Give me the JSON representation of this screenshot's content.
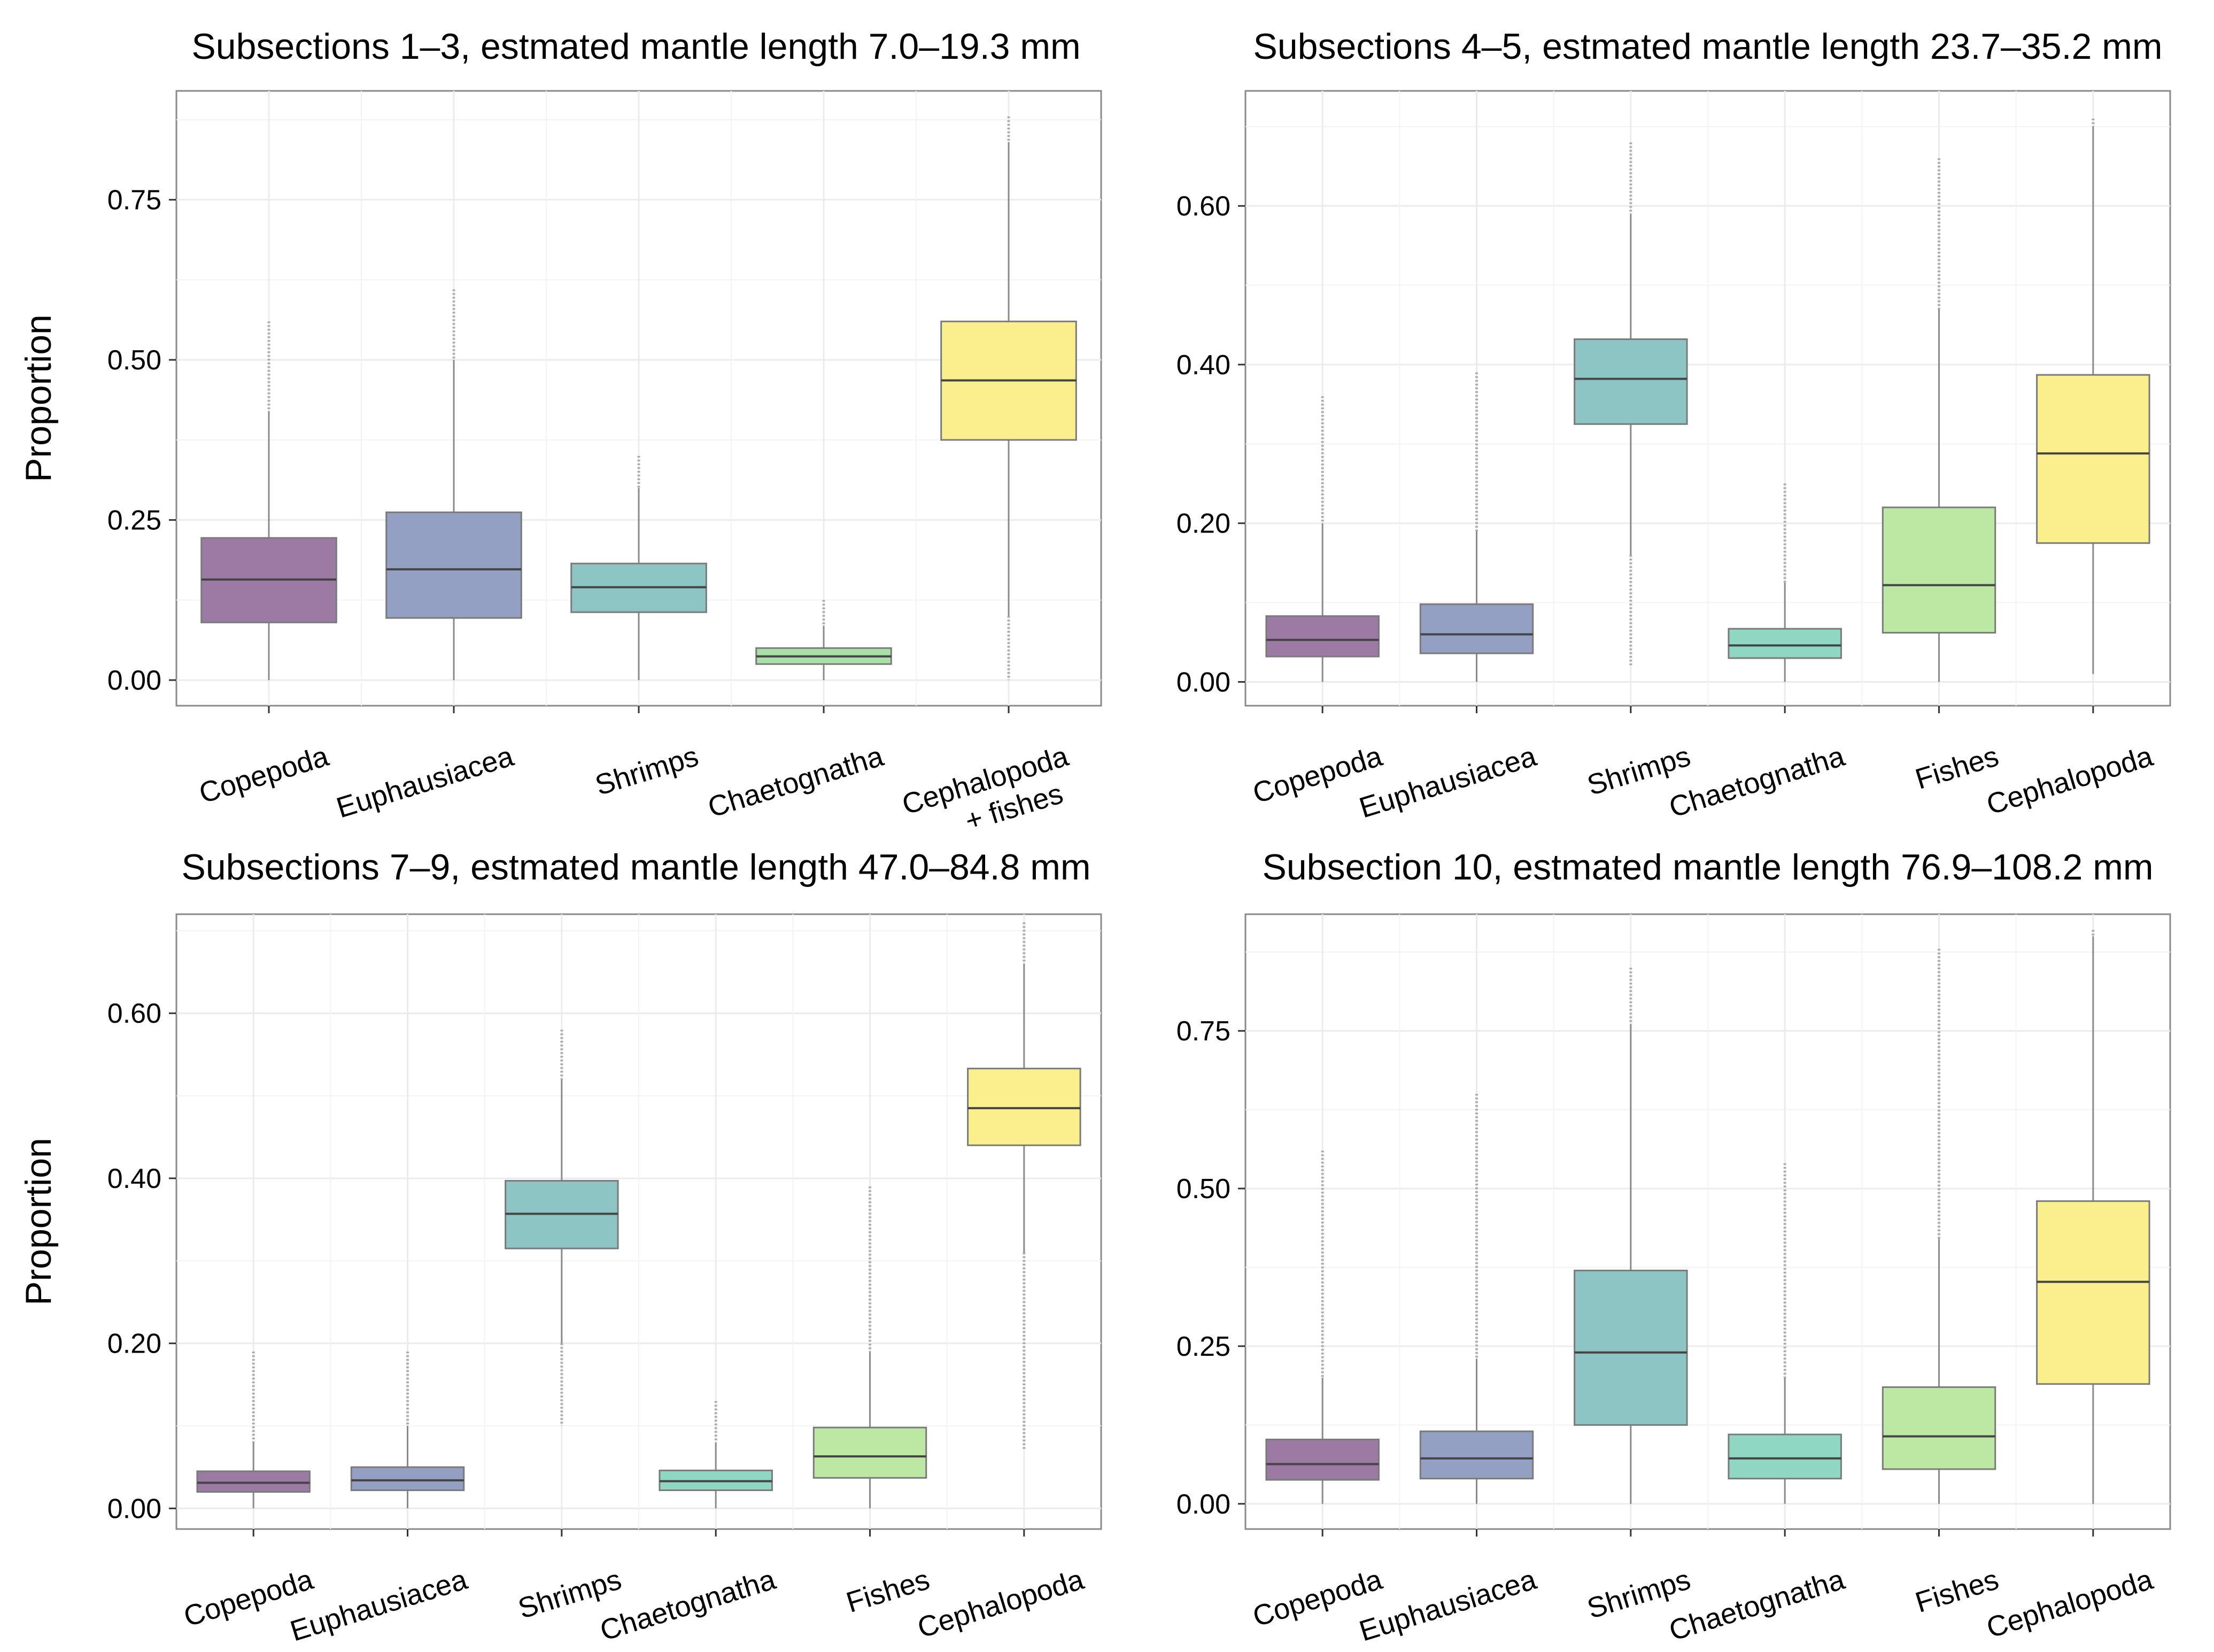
{
  "chart_data": [
    {
      "type": "box",
      "title": "Subsections 1–3, estmated mantle length 7.0–19.3 mm",
      "ylabel": "Proportion",
      "xlabel": "",
      "ylim": [
        -0.04,
        0.92
      ],
      "yticks": [
        0.0,
        0.25,
        0.5,
        0.75
      ],
      "ytick_labels": [
        "0.00",
        "0.25",
        "0.50",
        "0.75"
      ],
      "grid": true,
      "categories": [
        "Copepoda",
        "Euphausiacea",
        "Shrimps",
        "Chaetognatha",
        "Cephalopoda + fishes"
      ],
      "category_lines": [
        [
          "Copepoda"
        ],
        [
          "Euphausiacea"
        ],
        [
          "Shrimps"
        ],
        [
          "Chaetognatha"
        ],
        [
          "Cephalopoda",
          "+ fishes"
        ]
      ],
      "boxes": [
        {
          "min": 0.0,
          "q1": 0.09,
          "median": 0.157,
          "q3": 0.222,
          "max": 0.42,
          "outlier_top": 0.56,
          "outlier_bottom": null,
          "color": "#9b7aa3"
        },
        {
          "min": 0.0,
          "q1": 0.097,
          "median": 0.173,
          "q3": 0.262,
          "max": 0.5,
          "outlier_top": 0.61,
          "outlier_bottom": null,
          "color": "#94a0c3"
        },
        {
          "min": 0.0,
          "q1": 0.106,
          "median": 0.145,
          "q3": 0.182,
          "max": 0.3,
          "outlier_top": 0.35,
          "outlier_bottom": null,
          "color": "#8cc5c4"
        },
        {
          "min": 0.0,
          "q1": 0.025,
          "median": 0.037,
          "q3": 0.05,
          "max": 0.085,
          "outlier_top": 0.125,
          "outlier_bottom": null,
          "color": "#a9dfa8"
        },
        {
          "min": 0.1,
          "q1": 0.375,
          "median": 0.468,
          "q3": 0.56,
          "max": 0.84,
          "outlier_top": 0.88,
          "outlier_bottom": 0.0,
          "color": "#f9ef8d"
        }
      ]
    },
    {
      "type": "box",
      "title": "Subsections 4–5, estmated mantle length 23.7–35.2 mm",
      "ylabel": "",
      "xlabel": "",
      "ylim": [
        -0.03,
        0.745
      ],
      "yticks": [
        0.0,
        0.2,
        0.4,
        0.6
      ],
      "ytick_labels": [
        "0.00",
        "0.20",
        "0.40",
        "0.60"
      ],
      "grid": true,
      "categories": [
        "Copepoda",
        "Euphausiacea",
        "Shrimps",
        "Chaetognatha",
        "Fishes",
        "Cephalopoda"
      ],
      "category_lines": [
        [
          "Copepoda"
        ],
        [
          "Euphausiacea"
        ],
        [
          "Shrimps"
        ],
        [
          "Chaetognatha"
        ],
        [
          "Fishes"
        ],
        [
          "Cephalopoda"
        ]
      ],
      "boxes": [
        {
          "min": 0.0,
          "q1": 0.032,
          "median": 0.053,
          "q3": 0.083,
          "max": 0.2,
          "outlier_top": 0.36,
          "outlier_bottom": null,
          "color": "#9b7aa3"
        },
        {
          "min": 0.0,
          "q1": 0.036,
          "median": 0.06,
          "q3": 0.098,
          "max": 0.19,
          "outlier_top": 0.39,
          "outlier_bottom": null,
          "color": "#94a0c3"
        },
        {
          "min": 0.16,
          "q1": 0.325,
          "median": 0.382,
          "q3": 0.432,
          "max": 0.59,
          "outlier_top": 0.68,
          "outlier_bottom": 0.02,
          "color": "#8cc5c4"
        },
        {
          "min": 0.0,
          "q1": 0.03,
          "median": 0.046,
          "q3": 0.067,
          "max": 0.125,
          "outlier_top": 0.25,
          "outlier_bottom": null,
          "color": "#8fd6c3"
        },
        {
          "min": 0.0,
          "q1": 0.062,
          "median": 0.122,
          "q3": 0.22,
          "max": 0.47,
          "outlier_top": 0.66,
          "outlier_bottom": null,
          "color": "#bce8a3"
        },
        {
          "min": 0.01,
          "q1": 0.175,
          "median": 0.288,
          "q3": 0.387,
          "max": 0.7,
          "outlier_top": 0.71,
          "outlier_bottom": null,
          "color": "#f9ef8d"
        }
      ]
    },
    {
      "type": "box",
      "title": "Subsections 7–9, estmated mantle length 47.0–84.8 mm",
      "ylabel": "Proportion",
      "xlabel": "",
      "ylim": [
        -0.025,
        0.72
      ],
      "yticks": [
        0.0,
        0.2,
        0.4,
        0.6
      ],
      "ytick_labels": [
        "0.00",
        "0.20",
        "0.40",
        "0.60"
      ],
      "grid": true,
      "categories": [
        "Copepoda",
        "Euphausiacea",
        "Shrimps",
        "Chaetognatha",
        "Fishes",
        "Cephalopoda"
      ],
      "category_lines": [
        [
          "Copepoda"
        ],
        [
          "Euphausiacea"
        ],
        [
          "Shrimps"
        ],
        [
          "Chaetognatha"
        ],
        [
          "Fishes"
        ],
        [
          "Cephalopoda"
        ]
      ],
      "boxes": [
        {
          "min": 0.0,
          "q1": 0.02,
          "median": 0.031,
          "q3": 0.045,
          "max": 0.08,
          "outlier_top": 0.19,
          "outlier_bottom": null,
          "color": "#9b7aa3"
        },
        {
          "min": 0.0,
          "q1": 0.022,
          "median": 0.034,
          "q3": 0.05,
          "max": 0.1,
          "outlier_top": 0.19,
          "outlier_bottom": null,
          "color": "#94a0c3"
        },
        {
          "min": 0.2,
          "q1": 0.315,
          "median": 0.357,
          "q3": 0.397,
          "max": 0.52,
          "outlier_top": 0.58,
          "outlier_bottom": 0.1,
          "color": "#8cc5c4"
        },
        {
          "min": 0.0,
          "q1": 0.022,
          "median": 0.033,
          "q3": 0.046,
          "max": 0.08,
          "outlier_top": 0.13,
          "outlier_bottom": null,
          "color": "#8fd6c3"
        },
        {
          "min": 0.0,
          "q1": 0.037,
          "median": 0.063,
          "q3": 0.098,
          "max": 0.19,
          "outlier_top": 0.39,
          "outlier_bottom": null,
          "color": "#bce8a3"
        },
        {
          "min": 0.31,
          "q1": 0.44,
          "median": 0.485,
          "q3": 0.533,
          "max": 0.66,
          "outlier_top": 0.71,
          "outlier_bottom": 0.07,
          "color": "#f9ef8d"
        }
      ]
    },
    {
      "type": "box",
      "title": "Subsection 10, estmated mantle length 76.9–108.2 mm",
      "ylabel": "",
      "xlabel": "",
      "ylim": [
        -0.04,
        0.935
      ],
      "yticks": [
        0.0,
        0.25,
        0.5,
        0.75
      ],
      "ytick_labels": [
        "0.00",
        "0.25",
        "0.50",
        "0.75"
      ],
      "grid": true,
      "categories": [
        "Copepoda",
        "Euphausiacea",
        "Shrimps",
        "Chaetognatha",
        "Fishes",
        "Cephalopoda"
      ],
      "category_lines": [
        [
          "Copepoda"
        ],
        [
          "Euphausiacea"
        ],
        [
          "Shrimps"
        ],
        [
          "Chaetognatha"
        ],
        [
          "Fishes"
        ],
        [
          "Cephalopoda"
        ]
      ],
      "boxes": [
        {
          "min": 0.0,
          "q1": 0.038,
          "median": 0.063,
          "q3": 0.102,
          "max": 0.2,
          "outlier_top": 0.56,
          "outlier_bottom": null,
          "color": "#9b7aa3"
        },
        {
          "min": 0.0,
          "q1": 0.04,
          "median": 0.072,
          "q3": 0.115,
          "max": 0.23,
          "outlier_top": 0.65,
          "outlier_bottom": null,
          "color": "#94a0c3"
        },
        {
          "min": 0.0,
          "q1": 0.125,
          "median": 0.24,
          "q3": 0.37,
          "max": 0.76,
          "outlier_top": 0.85,
          "outlier_bottom": null,
          "color": "#8cc5c4"
        },
        {
          "min": 0.0,
          "q1": 0.04,
          "median": 0.072,
          "q3": 0.11,
          "max": 0.2,
          "outlier_top": 0.54,
          "outlier_bottom": null,
          "color": "#8fd6c3"
        },
        {
          "min": 0.0,
          "q1": 0.055,
          "median": 0.107,
          "q3": 0.185,
          "max": 0.42,
          "outlier_top": 0.88,
          "outlier_bottom": null,
          "color": "#bce8a3"
        },
        {
          "min": 0.0,
          "q1": 0.19,
          "median": 0.352,
          "q3": 0.48,
          "max": 0.9,
          "outlier_top": 0.91,
          "outlier_bottom": null,
          "color": "#f9ef8d"
        }
      ]
    }
  ]
}
